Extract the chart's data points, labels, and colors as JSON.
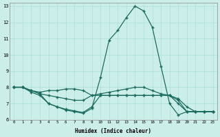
{
  "xlabel": "Humidex (Indice chaleur)",
  "bg_color": "#cceee8",
  "grid_color": "#aaddda",
  "line_color": "#1a6b5e",
  "xlim": [
    -0.5,
    23.5
  ],
  "ylim": [
    6,
    13.2
  ],
  "xticks": [
    0,
    1,
    2,
    3,
    4,
    5,
    6,
    7,
    8,
    9,
    10,
    11,
    12,
    13,
    14,
    15,
    16,
    17,
    18,
    19,
    20,
    21,
    22,
    23
  ],
  "yticks": [
    6,
    7,
    8,
    9,
    10,
    11,
    12,
    13
  ],
  "curves": [
    {
      "x": [
        0,
        1,
        2,
        3,
        4,
        5,
        6,
        7,
        8,
        9,
        10,
        11,
        12,
        13,
        14,
        15,
        16,
        17,
        18,
        19,
        20,
        21,
        22,
        23
      ],
      "y": [
        8.0,
        8.0,
        7.7,
        7.5,
        7.0,
        6.8,
        6.6,
        6.5,
        6.4,
        6.7,
        8.6,
        10.9,
        11.5,
        12.3,
        13.0,
        12.7,
        11.7,
        9.3,
        7.0,
        6.3,
        6.5,
        6.5,
        6.5,
        6.5
      ]
    },
    {
      "x": [
        0,
        1,
        2,
        3,
        4,
        5,
        6,
        7,
        8,
        9,
        10,
        11,
        12,
        13,
        14,
        15,
        16,
        17,
        18,
        19,
        20,
        21,
        22,
        23
      ],
      "y": [
        8.0,
        8.0,
        7.8,
        7.7,
        7.8,
        7.8,
        7.9,
        7.9,
        7.8,
        7.5,
        7.6,
        7.7,
        7.8,
        7.9,
        8.0,
        8.0,
        7.8,
        7.6,
        7.5,
        7.0,
        6.5,
        6.5,
        6.5,
        6.5
      ]
    },
    {
      "x": [
        0,
        1,
        2,
        3,
        4,
        5,
        6,
        7,
        8,
        9,
        10,
        11,
        12,
        13,
        14,
        15,
        16,
        17,
        18,
        19,
        20,
        21,
        22,
        23
      ],
      "y": [
        8.0,
        8.0,
        7.8,
        7.6,
        7.5,
        7.4,
        7.3,
        7.2,
        7.2,
        7.5,
        7.5,
        7.5,
        7.5,
        7.5,
        7.5,
        7.5,
        7.5,
        7.5,
        7.5,
        7.3,
        6.8,
        6.5,
        6.5,
        6.5
      ]
    },
    {
      "x": [
        0,
        1,
        2,
        3,
        4,
        5,
        6,
        7,
        8,
        9,
        10,
        11,
        12,
        13,
        14,
        15,
        16,
        17,
        18,
        19,
        20,
        21,
        22,
        23
      ],
      "y": [
        8.0,
        8.0,
        7.8,
        7.6,
        7.0,
        6.8,
        6.65,
        6.55,
        6.45,
        6.8,
        7.5,
        7.5,
        7.5,
        7.5,
        7.5,
        7.5,
        7.5,
        7.5,
        7.5,
        7.2,
        6.5,
        6.5,
        6.5,
        6.5
      ]
    }
  ]
}
